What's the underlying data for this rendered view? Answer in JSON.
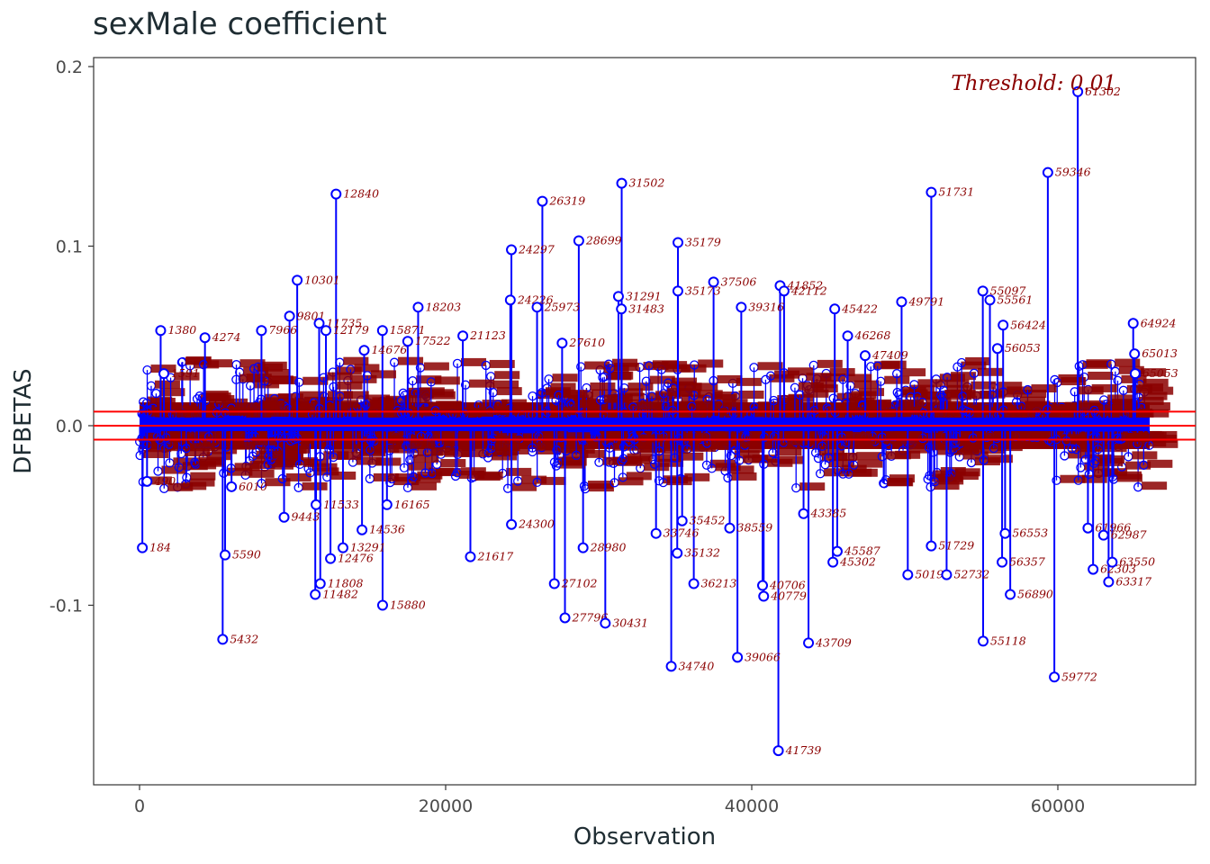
{
  "chart_data": {
    "type": "scatter",
    "title": "sexMale coefficient",
    "xlabel": "Observation",
    "ylabel": "DFBETAS",
    "xlim": [
      -3000,
      69000
    ],
    "ylim": [
      -0.2,
      0.205
    ],
    "x_ticks": [
      0,
      20000,
      40000,
      60000
    ],
    "x_tick_labels": [
      "0",
      "20000",
      "40000",
      "60000"
    ],
    "y_ticks": [
      -0.1,
      0.0,
      0.1,
      0.2
    ],
    "y_tick_labels": [
      "-0.1",
      "0.0",
      "0.1",
      "0.2"
    ],
    "threshold": 0.0078,
    "threshold_label": "Threshold: 0.01",
    "n_observations": 66000,
    "bulk_band": [
      -0.006,
      0.006
    ],
    "colors": {
      "points": "#0000ff",
      "labels": "#8b0000",
      "threshold": "#ff0000",
      "zero": "#ff0000"
    },
    "grid": false,
    "labeled_points": [
      {
        "x": 184,
        "y": -0.068,
        "label": "184"
      },
      {
        "x": 490,
        "y": -0.031,
        "label": "490"
      },
      {
        "x": 1380,
        "y": 0.053,
        "label": "1380"
      },
      {
        "x": 1591,
        "y": 0.029,
        "label": "1591"
      },
      {
        "x": 4274,
        "y": 0.049,
        "label": "4274"
      },
      {
        "x": 5432,
        "y": -0.119,
        "label": "5432"
      },
      {
        "x": 5590,
        "y": -0.072,
        "label": "5590"
      },
      {
        "x": 6010,
        "y": -0.034,
        "label": "6010"
      },
      {
        "x": 7966,
        "y": 0.053,
        "label": "7966"
      },
      {
        "x": 9443,
        "y": -0.051,
        "label": "9443"
      },
      {
        "x": 9801,
        "y": 0.061,
        "label": "9801"
      },
      {
        "x": 10301,
        "y": 0.081,
        "label": "10301"
      },
      {
        "x": 11482,
        "y": -0.094,
        "label": "11482"
      },
      {
        "x": 11533,
        "y": -0.044,
        "label": "11533"
      },
      {
        "x": 11735,
        "y": 0.057,
        "label": "11735"
      },
      {
        "x": 11808,
        "y": -0.088,
        "label": "11808"
      },
      {
        "x": 12179,
        "y": 0.053,
        "label": "12179"
      },
      {
        "x": 12476,
        "y": -0.074,
        "label": "12476"
      },
      {
        "x": 12840,
        "y": 0.129,
        "label": "12840"
      },
      {
        "x": 13291,
        "y": -0.068,
        "label": "13291"
      },
      {
        "x": 14536,
        "y": -0.058,
        "label": "14536"
      },
      {
        "x": 14676,
        "y": 0.042,
        "label": "14676"
      },
      {
        "x": 15871,
        "y": 0.053,
        "label": "15871"
      },
      {
        "x": 15880,
        "y": -0.1,
        "label": "15880"
      },
      {
        "x": 16165,
        "y": -0.044,
        "label": "16165"
      },
      {
        "x": 17522,
        "y": 0.047,
        "label": "17522"
      },
      {
        "x": 18203,
        "y": 0.066,
        "label": "18203"
      },
      {
        "x": 21123,
        "y": 0.05,
        "label": "21123"
      },
      {
        "x": 21617,
        "y": -0.073,
        "label": "21617"
      },
      {
        "x": 24297,
        "y": 0.098,
        "label": "24297"
      },
      {
        "x": 24226,
        "y": 0.07,
        "label": "24226"
      },
      {
        "x": 24300,
        "y": -0.055,
        "label": "24300"
      },
      {
        "x": 25973,
        "y": 0.066,
        "label": "25973"
      },
      {
        "x": 26319,
        "y": 0.125,
        "label": "26319"
      },
      {
        "x": 27102,
        "y": -0.088,
        "label": "27102"
      },
      {
        "x": 27610,
        "y": 0.046,
        "label": "27610"
      },
      {
        "x": 27796,
        "y": -0.107,
        "label": "27796"
      },
      {
        "x": 28699,
        "y": 0.103,
        "label": "28699"
      },
      {
        "x": 28980,
        "y": -0.068,
        "label": "28980"
      },
      {
        "x": 30431,
        "y": -0.11,
        "label": "30431"
      },
      {
        "x": 31291,
        "y": 0.072,
        "label": "31291"
      },
      {
        "x": 31483,
        "y": 0.065,
        "label": "31483"
      },
      {
        "x": 31502,
        "y": 0.135,
        "label": "31502"
      },
      {
        "x": 33746,
        "y": -0.06,
        "label": "33746"
      },
      {
        "x": 34740,
        "y": -0.134,
        "label": "34740"
      },
      {
        "x": 35132,
        "y": -0.071,
        "label": "35132"
      },
      {
        "x": 35173,
        "y": 0.075,
        "label": "35173"
      },
      {
        "x": 35179,
        "y": 0.102,
        "label": "35179"
      },
      {
        "x": 35452,
        "y": -0.053,
        "label": "35452"
      },
      {
        "x": 36213,
        "y": -0.088,
        "label": "36213"
      },
      {
        "x": 37506,
        "y": 0.08,
        "label": "37506"
      },
      {
        "x": 38559,
        "y": -0.057,
        "label": "38559"
      },
      {
        "x": 39066,
        "y": -0.129,
        "label": "39066"
      },
      {
        "x": 39316,
        "y": 0.066,
        "label": "39316"
      },
      {
        "x": 40706,
        "y": -0.089,
        "label": "40706"
      },
      {
        "x": 40779,
        "y": -0.095,
        "label": "40779"
      },
      {
        "x": 41739,
        "y": -0.181,
        "label": "41739"
      },
      {
        "x": 41852,
        "y": 0.078,
        "label": "41852"
      },
      {
        "x": 42112,
        "y": 0.075,
        "label": "42112"
      },
      {
        "x": 43385,
        "y": -0.049,
        "label": "43385"
      },
      {
        "x": 43709,
        "y": -0.121,
        "label": "43709"
      },
      {
        "x": 45302,
        "y": -0.076,
        "label": "45302"
      },
      {
        "x": 45422,
        "y": 0.065,
        "label": "45422"
      },
      {
        "x": 45587,
        "y": -0.07,
        "label": "45587"
      },
      {
        "x": 46268,
        "y": 0.05,
        "label": "46268"
      },
      {
        "x": 47409,
        "y": 0.039,
        "label": "47409"
      },
      {
        "x": 49791,
        "y": 0.069,
        "label": "49791"
      },
      {
        "x": 50195,
        "y": -0.083,
        "label": "50195"
      },
      {
        "x": 51729,
        "y": -0.067,
        "label": "51729"
      },
      {
        "x": 51731,
        "y": 0.13,
        "label": "51731"
      },
      {
        "x": 52732,
        "y": -0.083,
        "label": "52732"
      },
      {
        "x": 55097,
        "y": 0.075,
        "label": "55097"
      },
      {
        "x": 55118,
        "y": -0.12,
        "label": "55118"
      },
      {
        "x": 55561,
        "y": 0.07,
        "label": "55561"
      },
      {
        "x": 56053,
        "y": 0.043,
        "label": "56053"
      },
      {
        "x": 56357,
        "y": -0.076,
        "label": "56357"
      },
      {
        "x": 56424,
        "y": 0.056,
        "label": "56424"
      },
      {
        "x": 56553,
        "y": -0.06,
        "label": "56553"
      },
      {
        "x": 56890,
        "y": -0.094,
        "label": "56890"
      },
      {
        "x": 59346,
        "y": 0.141,
        "label": "59346"
      },
      {
        "x": 59772,
        "y": -0.14,
        "label": "59772"
      },
      {
        "x": 61302,
        "y": 0.186,
        "label": "61302"
      },
      {
        "x": 61966,
        "y": -0.057,
        "label": "61966"
      },
      {
        "x": 62303,
        "y": -0.08,
        "label": "62303"
      },
      {
        "x": 62987,
        "y": -0.061,
        "label": "62987"
      },
      {
        "x": 63317,
        "y": -0.087,
        "label": "63317"
      },
      {
        "x": 63550,
        "y": -0.076,
        "label": "63550"
      },
      {
        "x": 64924,
        "y": 0.057,
        "label": "64924"
      },
      {
        "x": 65013,
        "y": 0.04,
        "label": "65013"
      },
      {
        "x": 65053,
        "y": 0.029,
        "label": "65053"
      }
    ]
  }
}
